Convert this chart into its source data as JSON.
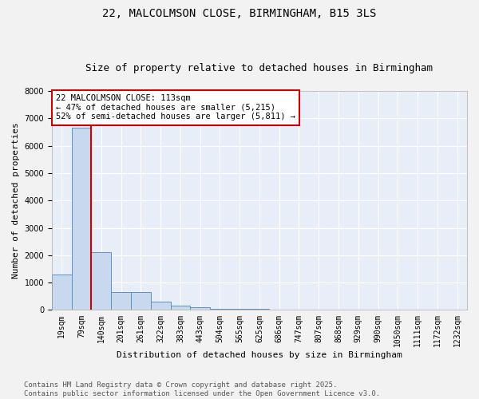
{
  "title": "22, MALCOLMSON CLOSE, BIRMINGHAM, B15 3LS",
  "subtitle": "Size of property relative to detached houses in Birmingham",
  "xlabel": "Distribution of detached houses by size in Birmingham",
  "ylabel": "Number of detached properties",
  "categories": [
    "19sqm",
    "79sqm",
    "140sqm",
    "201sqm",
    "261sqm",
    "322sqm",
    "383sqm",
    "443sqm",
    "504sqm",
    "565sqm",
    "625sqm",
    "686sqm",
    "747sqm",
    "807sqm",
    "868sqm",
    "929sqm",
    "990sqm",
    "1050sqm",
    "1111sqm",
    "1172sqm",
    "1232sqm"
  ],
  "values": [
    1300,
    6650,
    2100,
    650,
    650,
    300,
    150,
    100,
    50,
    50,
    50,
    0,
    0,
    0,
    0,
    0,
    0,
    0,
    0,
    0,
    0
  ],
  "bar_color": "#c8d8ee",
  "bar_edge_color": "#6090c0",
  "background_color": "#e8eef8",
  "grid_color": "#ffffff",
  "red_line_x": 1.5,
  "annotation_text": "22 MALCOLMSON CLOSE: 113sqm\n← 47% of detached houses are smaller (5,215)\n52% of semi-detached houses are larger (5,811) →",
  "annotation_box_color": "#ffffff",
  "annotation_box_edge_color": "#cc0000",
  "footer_line1": "Contains HM Land Registry data © Crown copyright and database right 2025.",
  "footer_line2": "Contains public sector information licensed under the Open Government Licence v3.0.",
  "ylim": [
    0,
    8000
  ],
  "title_fontsize": 10,
  "subtitle_fontsize": 9,
  "ann_fontsize": 7.5,
  "tick_fontsize": 7,
  "ylabel_fontsize": 8,
  "xlabel_fontsize": 8,
  "footer_fontsize": 6.5
}
